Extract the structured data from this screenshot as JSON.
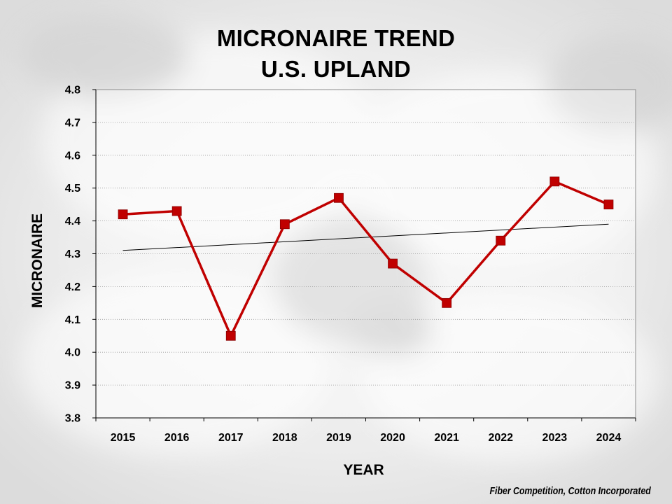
{
  "chart_data": {
    "type": "line",
    "title": "MICRONAIRE TREND",
    "subtitle": "U.S. UPLAND",
    "xlabel": "YEAR",
    "ylabel": "MICRONAIRE",
    "categories": [
      "2015",
      "2016",
      "2017",
      "2018",
      "2019",
      "2020",
      "2021",
      "2022",
      "2023",
      "2024"
    ],
    "series": [
      {
        "values": [
          4.42,
          4.43,
          4.05,
          4.39,
          4.47,
          4.27,
          4.15,
          4.34,
          4.52,
          4.45
        ],
        "color": "#c00000",
        "marker": "square"
      }
    ],
    "trendline": {
      "type": "linear",
      "start": 4.31,
      "end": 4.39,
      "color": "#000000"
    },
    "ylim": [
      3.8,
      4.8
    ],
    "yticks": [
      "3.8",
      "3.9",
      "4.0",
      "4.1",
      "4.2",
      "4.3",
      "4.4",
      "4.5",
      "4.6",
      "4.7",
      "4.8"
    ],
    "grid": "horizontal dotted",
    "legend": "none"
  },
  "footer": {
    "source": "Fiber Competition, Cotton Incorporated"
  }
}
